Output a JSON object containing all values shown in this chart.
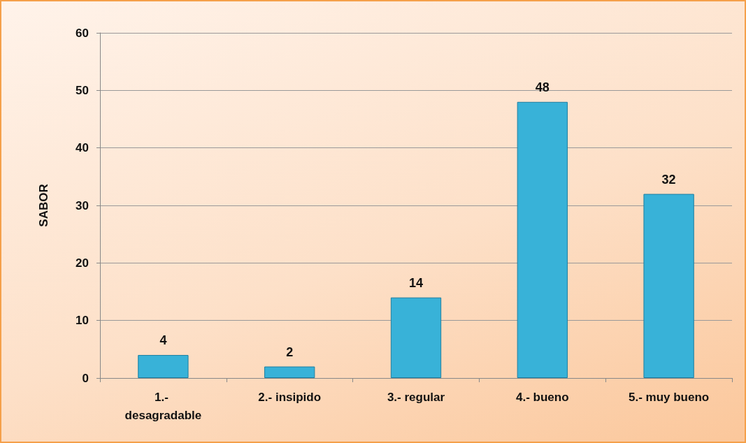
{
  "chart_data": {
    "type": "bar",
    "ylabel": "SABOR",
    "categories": [
      "1.- desagradable",
      "2.- insipido",
      "3.- regular",
      "4.- bueno",
      "5.- muy bueno"
    ],
    "values": [
      4,
      2,
      14,
      48,
      32
    ],
    "color": "#38b2d8",
    "ylim": [
      0,
      60
    ],
    "yticks": [
      0,
      10,
      20,
      30,
      40,
      50,
      60
    ],
    "grid": "y",
    "data_labels": true
  }
}
